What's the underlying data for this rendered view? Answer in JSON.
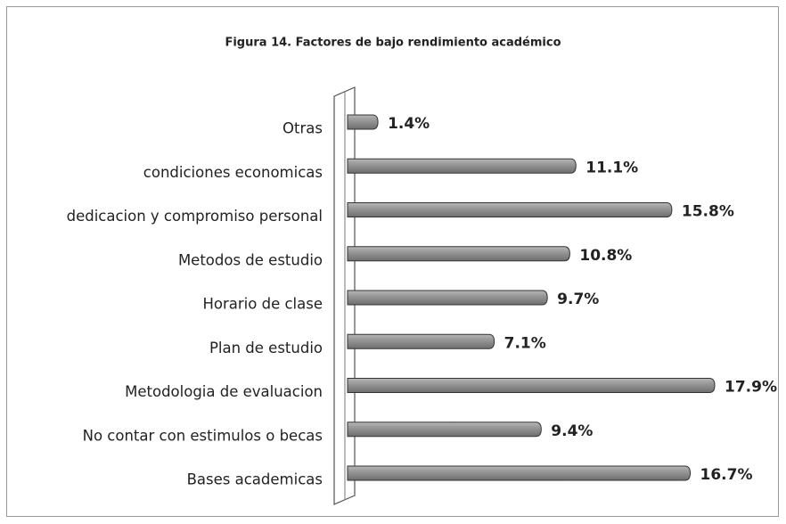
{
  "chart_data": {
    "type": "bar",
    "orientation": "horizontal",
    "title": "Figura 14. Factores de bajo rendimiento académico",
    "categories": [
      "Otras",
      "condiciones economicas",
      "dedicacion y compromiso personal",
      "Metodos de estudio",
      "Horario de clase",
      "Plan de estudio",
      "Metodologia de evaluacion",
      "No contar con estimulos o becas",
      "Bases academicas"
    ],
    "values": [
      1.4,
      11.1,
      15.8,
      10.8,
      9.7,
      7.1,
      17.9,
      9.4,
      16.7
    ],
    "value_labels": [
      "1.4%",
      "11.1%",
      "15.8%",
      "10.8%",
      "9.7%",
      "7.1%",
      "17.9%",
      "9.4%",
      "16.7%"
    ],
    "color": "#8a8a8a"
  }
}
